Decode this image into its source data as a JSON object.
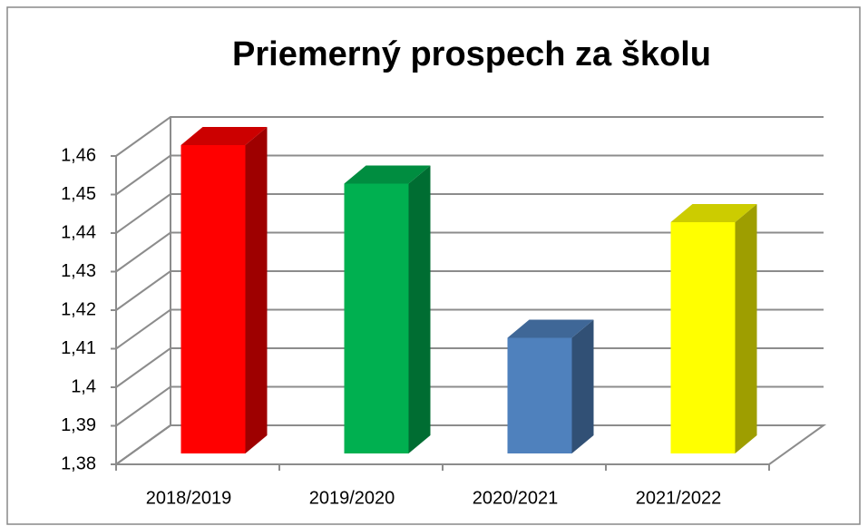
{
  "chart_data": {
    "type": "bar3d",
    "title": "Priemerný prospech za školu",
    "categories": [
      "2018/2019",
      "2019/2020",
      "2020/2021",
      "2021/2022"
    ],
    "values": [
      1.46,
      1.45,
      1.41,
      1.44
    ],
    "colors": [
      "#ff0000",
      "#00b050",
      "#4f81bd",
      "#ffff00"
    ],
    "ylim": [
      1.38,
      1.46
    ],
    "yticks": [
      {
        "value": 1.38,
        "label": "1,38"
      },
      {
        "value": 1.39,
        "label": "1,39"
      },
      {
        "value": 1.4,
        "label": "1,4"
      },
      {
        "value": 1.41,
        "label": "1,41"
      },
      {
        "value": 1.42,
        "label": "1,42"
      },
      {
        "value": 1.43,
        "label": "1,43"
      },
      {
        "value": 1.44,
        "label": "1,44"
      },
      {
        "value": 1.45,
        "label": "1,45"
      },
      {
        "value": 1.46,
        "label": "1,46"
      }
    ],
    "grid": true
  }
}
